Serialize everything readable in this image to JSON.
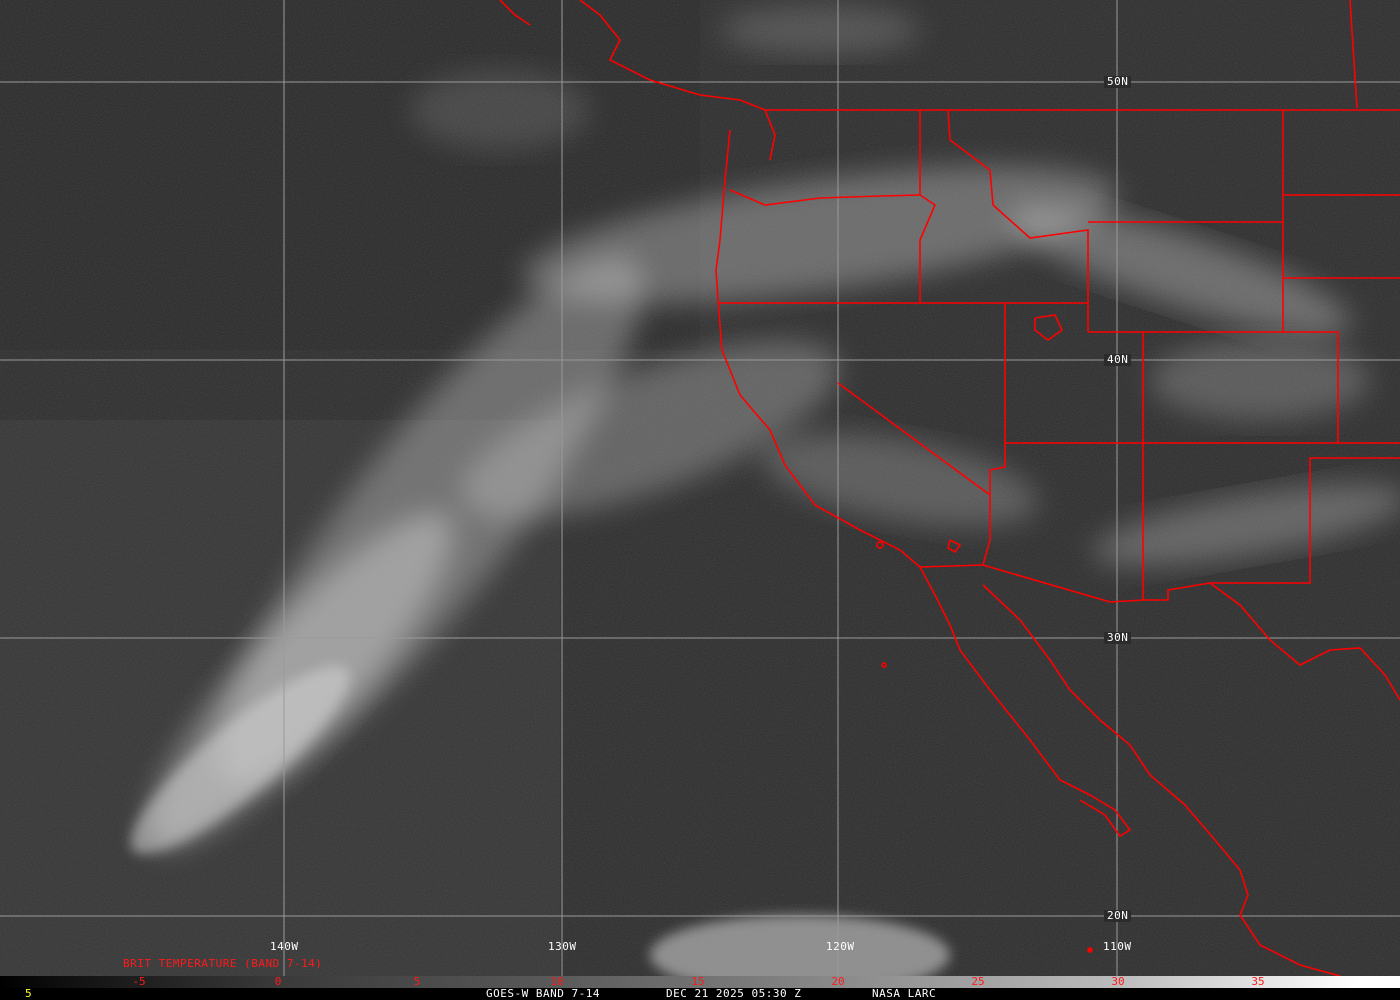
{
  "map": {
    "lat_labels": [
      "50N",
      "40N",
      "30N",
      "20N"
    ],
    "lon_labels": [
      "140W",
      "130W",
      "120W",
      "110W"
    ],
    "border_color": "#ff0000",
    "grid_color": "#9a9a9a"
  },
  "colorbar": {
    "title": "BRIT TEMPERATURE (BAND 7-14)",
    "ticks": [
      "-5",
      "0",
      "5",
      "10",
      "15",
      "20",
      "25",
      "30",
      "35"
    ],
    "left_value": "5",
    "tick_color": "#ff1a1a"
  },
  "footer": {
    "satellite": "GOES-W BAND 7-14",
    "datetime": "DEC 21 2025 05:30 Z",
    "source": "NASA LARC"
  }
}
